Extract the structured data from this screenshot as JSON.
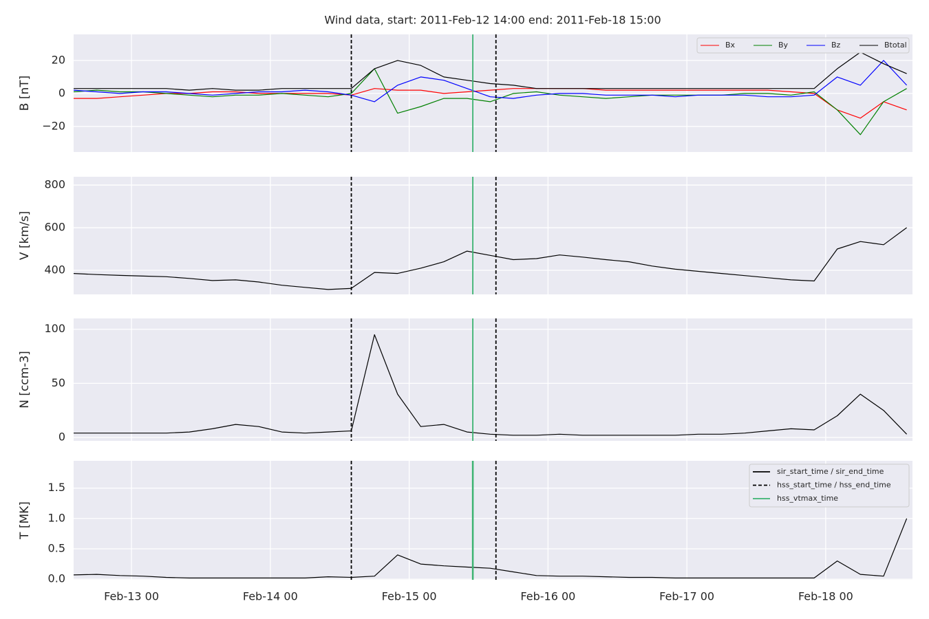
{
  "chart_data": [
    {
      "type": "line",
      "title": "Wind data, start: 2011-Feb-12 14:00  end: 2011-Feb-18 15:00",
      "ylabel": "B [nT]",
      "x": [
        "Feb-12 14",
        "Feb-12 18",
        "Feb-12 22",
        "Feb-13 02",
        "Feb-13 06",
        "Feb-13 10",
        "Feb-13 14",
        "Feb-13 18",
        "Feb-13 22",
        "Feb-14 02",
        "Feb-14 06",
        "Feb-14 10",
        "Feb-14 14",
        "Feb-14 18",
        "Feb-14 22",
        "Feb-15 02",
        "Feb-15 06",
        "Feb-15 10",
        "Feb-15 14",
        "Feb-15 18",
        "Feb-15 22",
        "Feb-16 02",
        "Feb-16 06",
        "Feb-16 10",
        "Feb-16 14",
        "Feb-16 18",
        "Feb-16 22",
        "Feb-17 02",
        "Feb-17 06",
        "Feb-17 10",
        "Feb-17 14",
        "Feb-17 18",
        "Feb-17 22",
        "Feb-18 02",
        "Feb-18 06",
        "Feb-18 10",
        "Feb-18 14"
      ],
      "xlim": [
        "Feb-12 14",
        "Feb-18 15"
      ],
      "ylim": [
        -35.5,
        35.8
      ],
      "yticks": [
        {
          "value": -20,
          "label": "−20"
        },
        0,
        20
      ],
      "grid": true,
      "legend": "upper right",
      "series": [
        {
          "name": "Bx",
          "color": "#ff0000",
          "values": [
            -3,
            -3,
            -2,
            -1,
            0,
            0,
            1,
            1,
            0,
            0,
            0,
            0,
            -1,
            3,
            2,
            2,
            0,
            1,
            2,
            3,
            3,
            3,
            3,
            2,
            2,
            2,
            2,
            2,
            2,
            2,
            2,
            1,
            0,
            -10,
            -15,
            -5,
            -10
          ]
        },
        {
          "name": "By",
          "color": "#008000",
          "values": [
            1,
            2,
            1,
            1,
            0,
            -1,
            -2,
            -1,
            -1,
            0,
            -1,
            -2,
            0,
            15,
            -12,
            -8,
            -3,
            -3,
            -5,
            0,
            1,
            -1,
            -2,
            -3,
            -2,
            -1,
            -1,
            -1,
            -1,
            0,
            0,
            -1,
            1,
            -10,
            -25,
            -5,
            3
          ]
        },
        {
          "name": "Bz",
          "color": "#0000ff",
          "values": [
            2,
            1,
            0,
            1,
            1,
            0,
            -1,
            0,
            1,
            1,
            2,
            1,
            -1,
            -5,
            5,
            10,
            8,
            3,
            -2,
            -3,
            -1,
            0,
            0,
            -1,
            -1,
            -1,
            -2,
            -1,
            -1,
            -1,
            -2,
            -2,
            -1,
            10,
            5,
            20,
            5
          ]
        },
        {
          "name": "Btotal",
          "color": "#000000",
          "values": [
            3,
            3,
            3,
            3,
            3,
            2,
            3,
            2,
            2,
            3,
            3,
            3,
            3,
            15,
            20,
            17,
            10,
            8,
            6,
            5,
            3,
            3,
            3,
            3,
            3,
            3,
            3,
            3,
            3,
            3,
            3,
            3,
            3,
            15,
            25,
            18,
            12
          ]
        }
      ]
    },
    {
      "type": "line",
      "ylabel": "V [km/s]",
      "x": [
        "Feb-12 14",
        "Feb-12 18",
        "Feb-12 22",
        "Feb-13 02",
        "Feb-13 06",
        "Feb-13 10",
        "Feb-13 14",
        "Feb-13 18",
        "Feb-13 22",
        "Feb-14 02",
        "Feb-14 06",
        "Feb-14 10",
        "Feb-14 14",
        "Feb-14 18",
        "Feb-14 22",
        "Feb-15 02",
        "Feb-15 06",
        "Feb-15 10",
        "Feb-15 14",
        "Feb-15 18",
        "Feb-15 22",
        "Feb-16 02",
        "Feb-16 06",
        "Feb-16 10",
        "Feb-16 14",
        "Feb-16 18",
        "Feb-16 22",
        "Feb-17 02",
        "Feb-17 06",
        "Feb-17 10",
        "Feb-17 14",
        "Feb-17 18",
        "Feb-17 22",
        "Feb-18 02",
        "Feb-18 06",
        "Feb-18 10",
        "Feb-18 14"
      ],
      "xlim": [
        "Feb-12 14",
        "Feb-18 15"
      ],
      "ylim": [
        287,
        839
      ],
      "yticks": [
        400,
        600,
        800
      ],
      "grid": true,
      "color": "#000000",
      "values": [
        385,
        380,
        376,
        373,
        370,
        362,
        352,
        355,
        345,
        330,
        320,
        310,
        315,
        390,
        385,
        410,
        440,
        490,
        470,
        450,
        455,
        472,
        462,
        450,
        440,
        420,
        405,
        395,
        385,
        375,
        365,
        355,
        350,
        500,
        535,
        520,
        600
      ]
    },
    {
      "type": "line",
      "ylabel": "N [ccm-3]",
      "x": [
        "Feb-12 14",
        "Feb-12 18",
        "Feb-12 22",
        "Feb-13 02",
        "Feb-13 06",
        "Feb-13 10",
        "Feb-13 14",
        "Feb-13 18",
        "Feb-13 22",
        "Feb-14 02",
        "Feb-14 06",
        "Feb-14 10",
        "Feb-14 14",
        "Feb-14 18",
        "Feb-14 22",
        "Feb-15 02",
        "Feb-15 06",
        "Feb-15 10",
        "Feb-15 14",
        "Feb-15 18",
        "Feb-15 22",
        "Feb-16 02",
        "Feb-16 06",
        "Feb-16 10",
        "Feb-16 14",
        "Feb-16 18",
        "Feb-16 22",
        "Feb-17 02",
        "Feb-17 06",
        "Feb-17 10",
        "Feb-17 14",
        "Feb-17 18",
        "Feb-17 22",
        "Feb-18 02",
        "Feb-18 06",
        "Feb-18 10",
        "Feb-18 14"
      ],
      "xlim": [
        "Feb-12 14",
        "Feb-18 15"
      ],
      "ylim": [
        -3.2,
        110
      ],
      "yticks": [
        0,
        50,
        100
      ],
      "grid": true,
      "color": "#000000",
      "values": [
        4,
        4,
        4,
        4,
        4,
        5,
        8,
        12,
        10,
        5,
        4,
        5,
        6,
        95,
        40,
        10,
        12,
        5,
        3,
        2,
        2,
        3,
        2,
        2,
        2,
        2,
        2,
        3,
        3,
        4,
        6,
        8,
        7,
        20,
        40,
        25,
        3
      ]
    },
    {
      "type": "line",
      "ylabel": "T [MK]",
      "x": [
        "Feb-12 14",
        "Feb-12 18",
        "Feb-12 22",
        "Feb-13 02",
        "Feb-13 06",
        "Feb-13 10",
        "Feb-13 14",
        "Feb-13 18",
        "Feb-13 22",
        "Feb-14 02",
        "Feb-14 06",
        "Feb-14 10",
        "Feb-14 14",
        "Feb-14 18",
        "Feb-14 22",
        "Feb-15 02",
        "Feb-15 06",
        "Feb-15 10",
        "Feb-15 14",
        "Feb-15 18",
        "Feb-15 22",
        "Feb-16 02",
        "Feb-16 06",
        "Feb-16 10",
        "Feb-16 14",
        "Feb-16 18",
        "Feb-16 22",
        "Feb-17 02",
        "Feb-17 06",
        "Feb-17 10",
        "Feb-17 14",
        "Feb-17 18",
        "Feb-17 22",
        "Feb-18 02",
        "Feb-18 06",
        "Feb-18 10",
        "Feb-18 14"
      ],
      "xlim": [
        "Feb-12 14",
        "Feb-18 15"
      ],
      "xticks": [
        "Feb-13 00",
        "Feb-14 00",
        "Feb-15 00",
        "Feb-16 00",
        "Feb-17 00",
        "Feb-18 00"
      ],
      "ylim": [
        -0.01,
        1.95
      ],
      "yticks": [
        {
          "value": 0,
          "label": "0.0"
        },
        0.5,
        {
          "value": 1,
          "label": "1.0"
        },
        1.5
      ],
      "grid": true,
      "color": "#000000",
      "legend": "upper right",
      "values": [
        0.07,
        0.08,
        0.06,
        0.05,
        0.03,
        0.02,
        0.02,
        0.02,
        0.02,
        0.02,
        0.02,
        0.04,
        0.03,
        0.05,
        0.4,
        0.25,
        0.22,
        0.2,
        0.18,
        0.12,
        0.06,
        0.05,
        0.05,
        0.04,
        0.03,
        0.03,
        0.02,
        0.02,
        0.02,
        0.02,
        0.02,
        0.02,
        0.02,
        0.3,
        0.08,
        0.05,
        1.0
      ],
      "vlines": [
        {
          "name": "sir_start_time / sir_end_time",
          "color": "#000000",
          "style": "solid",
          "x": []
        },
        {
          "name": "hss_start_time / hss_end_time",
          "color": "#000000",
          "style": "dashed",
          "x": [
            "Feb-14 14",
            "Feb-15 15"
          ]
        },
        {
          "name": "hss_vtmax_time",
          "color": "#3cb371",
          "style": "solid",
          "x": [
            "Feb-15 11"
          ]
        }
      ]
    }
  ]
}
